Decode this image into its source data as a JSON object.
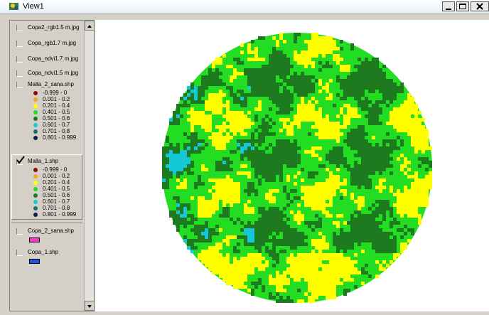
{
  "window": {
    "title": "View1"
  },
  "layers": [
    {
      "name": "Copa2_rgb1.5 m.jpg",
      "checked": false
    },
    {
      "name": "Copa_rgb1.7 m.jpg",
      "checked": false
    },
    {
      "name": "Copa_ndvi1.7 m.jpg",
      "checked": false
    },
    {
      "name": "Copa_ndvi1.5 m.jpg",
      "checked": false
    },
    {
      "name": "Malla_2_sana.shp",
      "checked": false,
      "legend": [
        {
          "label": "-0.999 - 0",
          "color": "#8b0a0a"
        },
        {
          "label": "0.001 - 0.2",
          "color": "#f5a623"
        },
        {
          "label": "0.201 - 0.4",
          "color": "#ffff00"
        },
        {
          "label": "0.401 - 0.5",
          "color": "#22dd22"
        },
        {
          "label": "0.501 - 0.6",
          "color": "#1e7a1e"
        },
        {
          "label": "0.601 - 0.7",
          "color": "#14c8d8"
        },
        {
          "label": "0.701 - 0.8",
          "color": "#1a6e78"
        },
        {
          "label": "0.801 - 0.999",
          "color": "#0a1e5a"
        }
      ]
    },
    {
      "name": "Malla_1.shp",
      "checked": true,
      "active": true,
      "legend": [
        {
          "label": "-0.999 - 0",
          "color": "#8b0a0a"
        },
        {
          "label": "0.001 - 0.2",
          "color": "#f5a623"
        },
        {
          "label": "0.201 - 0.4",
          "color": "#ffff00"
        },
        {
          "label": "0.401 - 0.5",
          "color": "#22dd22"
        },
        {
          "label": "0.501 - 0.6",
          "color": "#1e7a1e"
        },
        {
          "label": "0.601 - 0.7",
          "color": "#14c8d8"
        },
        {
          "label": "0.701 - 0.8",
          "color": "#1a6e78"
        },
        {
          "label": "0.801 - 0.999",
          "color": "#0a1e5a"
        }
      ]
    },
    {
      "name": "Copa_2_sana.shp",
      "checked": false,
      "symbol": "#ff33cc"
    },
    {
      "name": "Copa_1.shp",
      "checked": false,
      "symbol": "#2255dd"
    }
  ]
}
